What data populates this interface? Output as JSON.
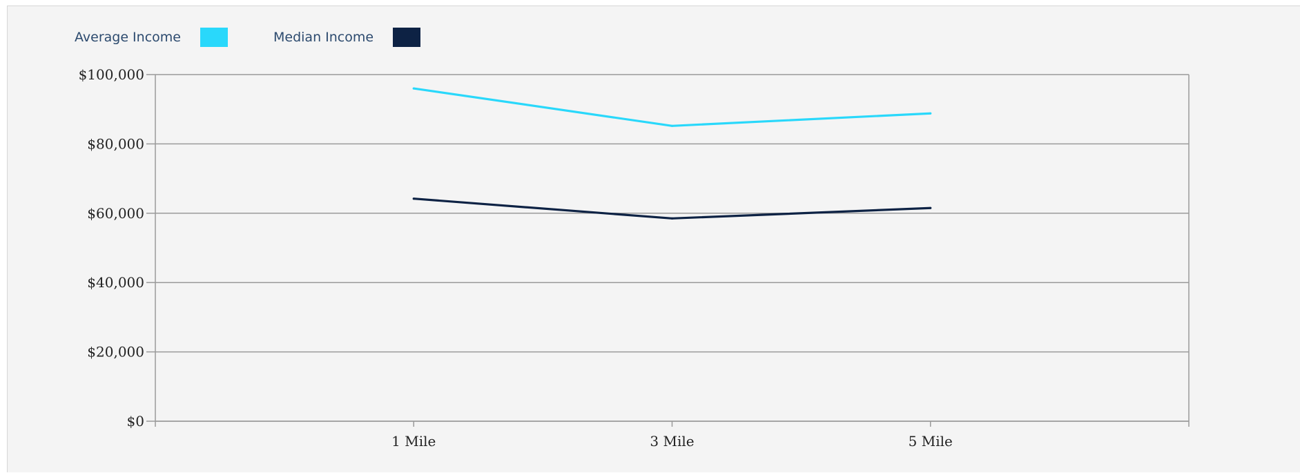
{
  "legend": [
    {
      "label": "Average Income",
      "color": "#29d8fb"
    },
    {
      "label": "Median Income",
      "color": "#0d2244"
    }
  ],
  "chart_data": {
    "type": "line",
    "title": "",
    "xlabel": "",
    "ylabel": "",
    "categories": [
      "1 Mile",
      "3 Mile",
      "5 Mile"
    ],
    "series": [
      {
        "name": "Average Income",
        "color": "#29d8fb",
        "values": [
          96000,
          85200,
          88800
        ]
      },
      {
        "name": "Median Income",
        "color": "#0d2244",
        "values": [
          64200,
          58500,
          61500
        ]
      }
    ],
    "ylim": [
      0,
      100000
    ],
    "yticks": [
      0,
      20000,
      40000,
      60000,
      80000,
      100000
    ],
    "ytick_labels": [
      "$0",
      "$20,000",
      "$40,000",
      "$60,000",
      "$80,000",
      "$100,000"
    ],
    "grid": true,
    "legend_position": "top-left"
  }
}
